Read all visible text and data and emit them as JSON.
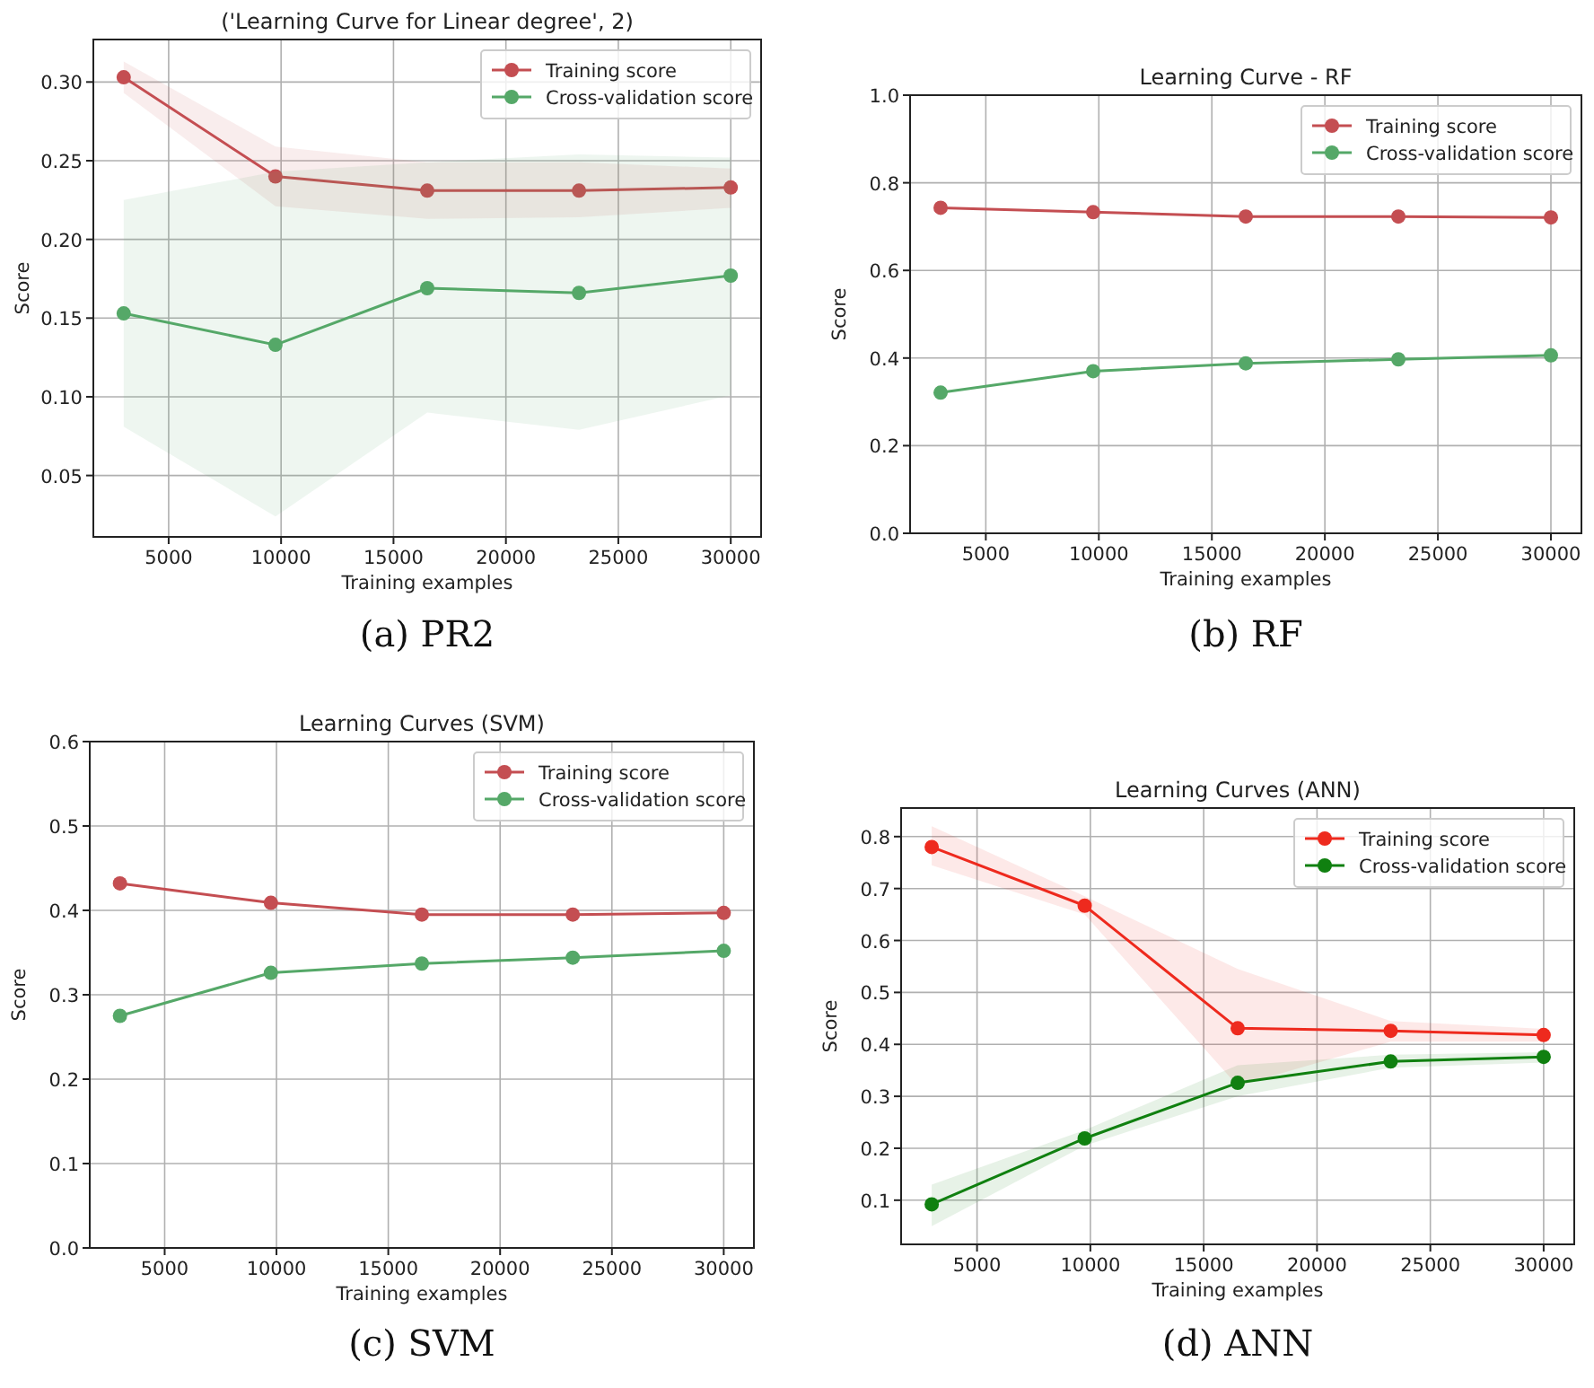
{
  "chart_data": [
    {
      "type": "line",
      "title": "('Learning Curve for Linear degree', 2)",
      "xlabel": "Training examples",
      "ylabel": "Score",
      "x": [
        3000,
        9750,
        16500,
        23250,
        30000
      ],
      "xlim": [
        1650,
        31350
      ],
      "xticks": [
        5000,
        10000,
        15000,
        20000,
        25000,
        30000
      ],
      "ylim": [
        0.011,
        0.327
      ],
      "yticks": [
        0.05,
        {
          "value": 0.1,
          "label": "0.10"
        },
        0.15,
        {
          "value": 0.2,
          "label": "0.20"
        },
        0.25,
        {
          "value": 0.3,
          "label": "0.30"
        }
      ],
      "grid": true,
      "legend": "top right",
      "marker": "circle",
      "annotations": [
        "(a) PR2"
      ],
      "series": [
        {
          "name": "Training score",
          "color": "#c44e52",
          "values": [
            0.303,
            0.24,
            0.231,
            0.231,
            0.233
          ],
          "lower": [
            0.293,
            0.221,
            0.213,
            0.214,
            0.22
          ],
          "upper": [
            0.313,
            0.259,
            0.249,
            0.249,
            0.245
          ]
        },
        {
          "name": "Cross-validation score",
          "color": "#55a868",
          "values": [
            0.153,
            0.133,
            0.169,
            0.166,
            0.177
          ],
          "lower": [
            0.081,
            0.024,
            0.09,
            0.079,
            0.101
          ],
          "upper": [
            0.225,
            0.243,
            0.249,
            0.254,
            0.252
          ]
        }
      ]
    },
    {
      "type": "line",
      "title": "Learning Curve - RF",
      "xlabel": "Training examples",
      "ylabel": "Score",
      "x": [
        3000,
        9750,
        16500,
        23250,
        30000
      ],
      "xlim": [
        1650,
        31350
      ],
      "xticks": [
        5000,
        10000,
        15000,
        20000,
        25000,
        30000
      ],
      "ylim": [
        0,
        1
      ],
      "yticks": [
        {
          "value": 0,
          "label": "0.0"
        },
        0.2,
        0.4,
        0.6,
        0.8,
        {
          "value": 1,
          "label": "1.0"
        }
      ],
      "grid": true,
      "legend": "top right",
      "marker": "circle",
      "annotations": [
        "(b) RF"
      ],
      "series": [
        {
          "name": "Training score",
          "color": "#c44e52",
          "values": [
            0.743,
            0.733,
            0.723,
            0.723,
            0.721
          ]
        },
        {
          "name": "Cross-validation score",
          "color": "#55a868",
          "values": [
            0.321,
            0.37,
            0.388,
            0.397,
            0.406
          ]
        }
      ]
    },
    {
      "type": "line",
      "title": "Learning Curves (SVM)",
      "xlabel": "Training examples",
      "ylabel": "Score",
      "x": [
        3000,
        9750,
        16500,
        23250,
        30000
      ],
      "xlim": [
        1650,
        31350
      ],
      "xticks": [
        5000,
        10000,
        15000,
        20000,
        25000,
        30000
      ],
      "ylim": [
        0,
        0.6
      ],
      "yticks": [
        {
          "value": 0,
          "label": "0.0"
        },
        0.1,
        0.2,
        0.3,
        0.4,
        0.5,
        0.6
      ],
      "grid": true,
      "legend": "top right",
      "marker": "circle",
      "annotations": [
        "(c) SVM"
      ],
      "series": [
        {
          "name": "Training score",
          "color": "#c44e52",
          "values": [
            0.432,
            0.409,
            0.395,
            0.395,
            0.397
          ]
        },
        {
          "name": "Cross-validation score",
          "color": "#55a868",
          "values": [
            0.275,
            0.326,
            0.337,
            0.344,
            0.352
          ]
        }
      ]
    },
    {
      "type": "line",
      "title": "Learning Curves (ANN)",
      "xlabel": "Training examples",
      "ylabel": "Score",
      "x": [
        3000,
        9750,
        16500,
        23250,
        30000
      ],
      "xlim": [
        1650,
        31350
      ],
      "xticks": [
        5000,
        10000,
        15000,
        20000,
        25000,
        30000
      ],
      "ylim": [
        0.015,
        0.855
      ],
      "yticks": [
        0.1,
        0.2,
        0.3,
        0.4,
        0.5,
        0.6,
        0.7,
        0.8
      ],
      "grid": true,
      "legend": "top right",
      "marker": "circle",
      "annotations": [
        "(d) ANN"
      ],
      "series": [
        {
          "name": "Training score",
          "color": "#ee2a1e",
          "values": [
            0.78,
            0.667,
            0.431,
            0.426,
            0.418
          ],
          "lower": [
            0.745,
            0.65,
            0.32,
            0.405,
            0.405
          ],
          "upper": [
            0.82,
            0.685,
            0.545,
            0.445,
            0.43
          ]
        },
        {
          "name": "Cross-validation score",
          "color": "#108010",
          "values": [
            0.092,
            0.219,
            0.326,
            0.367,
            0.376
          ],
          "lower": [
            0.05,
            0.205,
            0.3,
            0.355,
            0.365
          ],
          "upper": [
            0.13,
            0.235,
            0.36,
            0.38,
            0.385
          ]
        }
      ]
    }
  ]
}
